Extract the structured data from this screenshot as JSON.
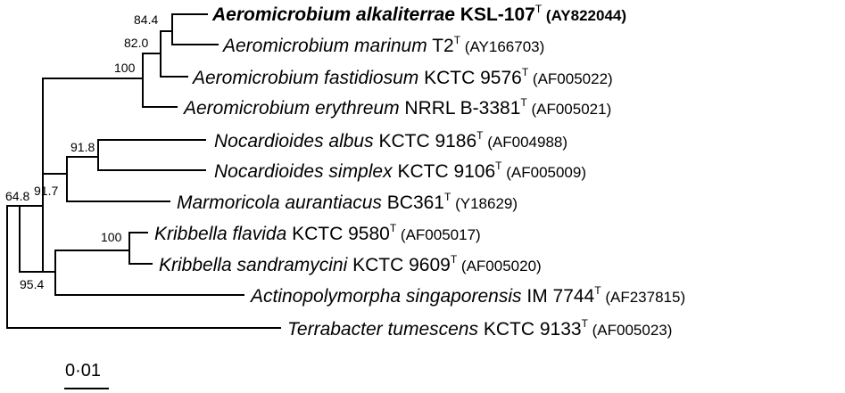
{
  "taxa": [
    {
      "id": "t1",
      "species": "Aeromicrobium alkaliterrae",
      "strain": "KSL-107",
      "type_mark": "T",
      "accession": "(AY822044)",
      "emphasis": "bold"
    },
    {
      "id": "t2",
      "species": "Aeromicrobium marinum",
      "strain": "T2",
      "type_mark": "T",
      "accession": "(AY166703)",
      "emphasis": "normal"
    },
    {
      "id": "t3",
      "species": "Aeromicrobium fastidiosum",
      "strain": "KCTC 9576",
      "type_mark": "T",
      "accession": "(AF005022)",
      "emphasis": "normal"
    },
    {
      "id": "t4",
      "species": "Aeromicrobium erythreum",
      "strain": "NRRL B-3381",
      "type_mark": "T",
      "accession": "(AF005021)",
      "emphasis": "normal"
    },
    {
      "id": "t5",
      "species": "Nocardioides albus",
      "strain": "KCTC 9186",
      "type_mark": "T",
      "accession": "(AF004988)",
      "emphasis": "normal"
    },
    {
      "id": "t6",
      "species": "Nocardioides simplex",
      "strain": "KCTC 9106",
      "type_mark": "T",
      "accession": "(AF005009)",
      "emphasis": "normal"
    },
    {
      "id": "t7",
      "species": "Marmoricola aurantiacus",
      "strain": "BC361",
      "type_mark": "T",
      "accession": "(Y18629)",
      "emphasis": "normal"
    },
    {
      "id": "t8",
      "species": "Kribbella flavida",
      "strain": "KCTC 9580",
      "type_mark": "T",
      "accession": "(AF005017)",
      "emphasis": "normal"
    },
    {
      "id": "t9",
      "species": "Kribbella sandramycini",
      "strain": "KCTC 9609",
      "type_mark": "T",
      "accession": "(AF005020)",
      "emphasis": "normal"
    },
    {
      "id": "t10",
      "species": "Actinopolymorpha singaporensis",
      "strain": "IM 7744",
      "type_mark": "T",
      "accession": "(AF237815)",
      "emphasis": "normal"
    },
    {
      "id": "t11",
      "species": "Terrabacter tumescens",
      "strain": "KCTC 9133",
      "type_mark": "T",
      "accession": "(AF005023)",
      "emphasis": "normal"
    }
  ],
  "bootstrap": {
    "n1": "84.4",
    "n2": "82.0",
    "n3": "100",
    "n5": "91.8",
    "n6": "91.7",
    "n7": "64.8",
    "n8": "100",
    "n9": "95.4"
  },
  "scale_bar": {
    "label": "0·01",
    "value": 0.01
  }
}
